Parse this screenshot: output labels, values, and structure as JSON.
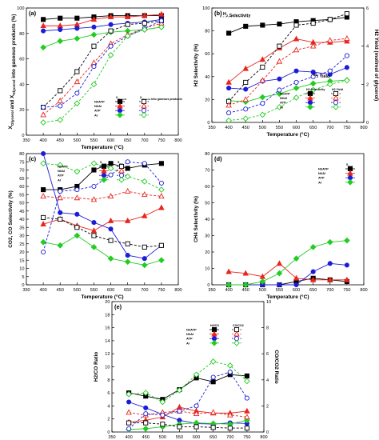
{
  "chart_data": [
    {
      "type": "line",
      "panel_label": "(a)",
      "xlabel": "Temperature (°C)",
      "ylabel": "X_Glycerol and X_Glycerol into gaseous products (%)",
      "xlim": [
        350,
        800
      ],
      "ylim": [
        0,
        100
      ],
      "x_ticks": [
        350,
        400,
        450,
        500,
        550,
        600,
        650,
        700,
        750,
        800
      ],
      "y_ticks": [
        0,
        20,
        40,
        60,
        80,
        100
      ],
      "x": [
        400,
        450,
        500,
        550,
        600,
        650,
        700,
        750
      ],
      "legend": {
        "rows": [
          "Ni/ATP",
          "Ni/Al",
          "ATP",
          "Al"
        ],
        "headers": [
          "X_Glycerol",
          "X_Glycerol into gaseous products"
        ]
      },
      "series": [
        {
          "name": "Ni/ATP",
          "kind": "X_Glycerol",
          "color": "#000000",
          "marker": "square",
          "filled": true,
          "dash": false,
          "values": [
            91,
            92,
            92,
            93,
            94,
            94,
            94,
            94
          ]
        },
        {
          "name": "Ni/Al",
          "kind": "X_Glycerol",
          "color": "#e8261c",
          "marker": "triangle",
          "filled": true,
          "dash": false,
          "values": [
            86,
            86,
            87,
            91,
            93,
            93,
            94,
            95
          ]
        },
        {
          "name": "ATP",
          "kind": "X_Glycerol",
          "color": "#1c1cd8",
          "marker": "circle",
          "filled": true,
          "dash": false,
          "values": [
            82,
            83,
            84,
            85,
            87,
            88,
            89,
            91
          ]
        },
        {
          "name": "Al",
          "kind": "X_Glycerol",
          "color": "#22cc22",
          "marker": "diamond",
          "filled": true,
          "dash": false,
          "values": [
            69,
            74,
            76,
            79,
            81,
            82,
            83,
            85
          ]
        },
        {
          "name": "Ni/ATP",
          "kind": "X_Glycerol into gaseous products",
          "color": "#000000",
          "marker": "square",
          "filled": false,
          "dash": true,
          "values": [
            22,
            35,
            50,
            70,
            82,
            87,
            88,
            90
          ]
        },
        {
          "name": "Ni/Al",
          "kind": "X_Glycerol into gaseous products",
          "color": "#e8261c",
          "marker": "triangle",
          "filled": false,
          "dash": true,
          "values": [
            16,
            27,
            42,
            57,
            72,
            79,
            84,
            88
          ]
        },
        {
          "name": "ATP",
          "kind": "X_Glycerol into gaseous products",
          "color": "#1c1cd8",
          "marker": "circle",
          "filled": false,
          "dash": true,
          "values": [
            22,
            23,
            33,
            54,
            70,
            78,
            84,
            90
          ]
        },
        {
          "name": "Al",
          "kind": "X_Glycerol into gaseous products",
          "color": "#22cc22",
          "marker": "diamond",
          "filled": false,
          "dash": true,
          "values": [
            10,
            12,
            25,
            40,
            63,
            78,
            83,
            85
          ]
        }
      ]
    },
    {
      "type": "line",
      "panel_label": "(b)",
      "xlabel": "Temperature (°C)",
      "ylabel": "H2 Selectivity (%)",
      "y2label": "H2 Yield (mol/mol of glycerol)",
      "xlim": [
        350,
        800
      ],
      "ylim": [
        0,
        100
      ],
      "y2lim": [
        0,
        6
      ],
      "x_ticks": [
        350,
        400,
        450,
        500,
        550,
        600,
        650,
        700,
        750,
        800
      ],
      "y_ticks": [
        0,
        20,
        40,
        60,
        80,
        100
      ],
      "y2_ticks": [
        0,
        2,
        4,
        6
      ],
      "annotations": [
        "H2 Selectivity",
        "H2 Yield"
      ],
      "x": [
        400,
        450,
        500,
        550,
        600,
        650,
        700,
        750
      ],
      "legend": {
        "rows": [
          "Ni/ATP",
          "Ni/Al",
          "ATP",
          "Al"
        ],
        "headers": [
          "H2 Selectivity",
          "H2 Yield"
        ]
      },
      "series": [
        {
          "name": "Ni/ATP",
          "kind": "H2 Selectivity",
          "color": "#000000",
          "marker": "square",
          "filled": true,
          "dash": false,
          "values": [
            78,
            84,
            85,
            86,
            88,
            89,
            90,
            92
          ]
        },
        {
          "name": "Ni/Al",
          "kind": "H2 Selectivity",
          "color": "#e8261c",
          "marker": "triangle",
          "filled": true,
          "dash": false,
          "values": [
            35,
            47,
            55,
            65,
            73,
            70,
            70,
            71
          ]
        },
        {
          "name": "ATP",
          "kind": "H2 Selectivity",
          "color": "#1c1cd8",
          "marker": "circle",
          "filled": true,
          "dash": false,
          "values": [
            30,
            29,
            36,
            38,
            45,
            44,
            42,
            48
          ]
        },
        {
          "name": "Al",
          "kind": "H2 Selectivity",
          "color": "#22cc22",
          "marker": "diamond",
          "filled": true,
          "dash": false,
          "values": [
            19,
            18,
            22,
            25,
            30,
            34,
            36,
            37
          ]
        },
        {
          "name": "Ni/ATP",
          "kind": "H2 Yield",
          "color": "#000000",
          "marker": "square",
          "filled": false,
          "dash": true,
          "axis": "right",
          "values": [
            1.1,
            2.1,
            2.9,
            4.0,
            5.1,
            5.2,
            5.4,
            5.7
          ]
        },
        {
          "name": "Ni/Al",
          "kind": "H2 Yield",
          "color": "#e8261c",
          "marker": "triangle",
          "filled": false,
          "dash": true,
          "axis": "right",
          "values": [
            0.9,
            1.2,
            2.2,
            3.2,
            3.8,
            4.0,
            4.3,
            4.4
          ]
        },
        {
          "name": "ATP",
          "kind": "H2 Yield",
          "color": "#1c1cd8",
          "marker": "circle",
          "filled": false,
          "dash": true,
          "axis": "right",
          "values": [
            0.5,
            0.7,
            1.0,
            1.7,
            2.1,
            2.4,
            2.7,
            3.5
          ]
        },
        {
          "name": "Al",
          "kind": "H2 Yield",
          "color": "#22cc22",
          "marker": "diamond",
          "filled": false,
          "dash": true,
          "axis": "right",
          "values": [
            0.1,
            0.2,
            0.4,
            0.8,
            1.3,
            1.7,
            2.0,
            2.2
          ]
        }
      ]
    },
    {
      "type": "line",
      "panel_label": "(c)",
      "xlabel": "Temperature (°C)",
      "ylabel": "CO2, CO Selectivity (%)",
      "xlim": [
        350,
        800
      ],
      "ylim": [
        0,
        80
      ],
      "x_ticks": [
        350,
        400,
        450,
        500,
        550,
        600,
        650,
        700,
        750,
        800
      ],
      "y_ticks": [
        0,
        5,
        10,
        15,
        20,
        25,
        30,
        35,
        40,
        45,
        50,
        55,
        60,
        65,
        70,
        75,
        80
      ],
      "x": [
        400,
        450,
        500,
        550,
        600,
        650,
        700,
        750
      ],
      "legend": {
        "rows": [
          "Ni/ATP",
          "Ni/Al",
          "ATP",
          "Al"
        ],
        "headers": [
          "S_CO2",
          "S_CO"
        ]
      },
      "series": [
        {
          "name": "Ni/ATP",
          "kind": "S_CO2",
          "color": "#000000",
          "marker": "square",
          "filled": true,
          "dash": false,
          "values": [
            58,
            58,
            60,
            70,
            74,
            71,
            73,
            74
          ]
        },
        {
          "name": "Ni/Al",
          "kind": "S_CO2",
          "color": "#e8261c",
          "marker": "triangle",
          "filled": true,
          "dash": false,
          "values": [
            37,
            40,
            36,
            33,
            39,
            39,
            42,
            47
          ]
        },
        {
          "name": "ATP",
          "kind": "S_CO2",
          "color": "#1c1cd8",
          "marker": "circle",
          "filled": true,
          "dash": false,
          "values": [
            80,
            44,
            43,
            38,
            34,
            18,
            16,
            24
          ]
        },
        {
          "name": "Al",
          "kind": "S_CO2",
          "color": "#22cc22",
          "marker": "diamond",
          "filled": true,
          "dash": false,
          "values": [
            26,
            24,
            30,
            23,
            16,
            14,
            12,
            15
          ]
        },
        {
          "name": "Ni/ATP",
          "kind": "S_CO",
          "color": "#000000",
          "marker": "square",
          "filled": false,
          "dash": true,
          "values": [
            41,
            40,
            35,
            30,
            27,
            25,
            23,
            24
          ]
        },
        {
          "name": "Ni/Al",
          "kind": "S_CO",
          "color": "#e8261c",
          "marker": "triangle",
          "filled": false,
          "dash": true,
          "values": [
            54,
            53,
            53,
            52,
            54,
            57,
            55,
            54
          ]
        },
        {
          "name": "ATP",
          "kind": "S_CO",
          "color": "#1c1cd8",
          "marker": "circle",
          "filled": false,
          "dash": true,
          "values": [
            20,
            57,
            58,
            60,
            67,
            75,
            74,
            62
          ]
        },
        {
          "name": "Al",
          "kind": "S_CO",
          "color": "#22cc22",
          "marker": "diamond",
          "filled": false,
          "dash": true,
          "values": [
            74,
            73,
            69,
            74,
            71,
            66,
            63,
            58
          ]
        }
      ]
    },
    {
      "type": "line",
      "panel_label": "(d)",
      "xlabel": "Temperature (°C)",
      "ylabel": "CH4 Selectivity (%)",
      "xlim": [
        350,
        800
      ],
      "ylim": [
        0,
        80
      ],
      "x_ticks": [
        350,
        400,
        450,
        500,
        550,
        600,
        650,
        700,
        750,
        800
      ],
      "y_ticks": [
        0,
        10,
        20,
        30,
        40,
        50,
        60,
        70,
        80
      ],
      "x": [
        400,
        450,
        500,
        550,
        600,
        650,
        700,
        750
      ],
      "legend": {
        "rows": [
          "Ni/ATP",
          "Ni/Al",
          "ATP",
          "Al"
        ],
        "headers": [
          "S_CH4"
        ]
      },
      "series": [
        {
          "name": "Ni/ATP",
          "kind": "S_CH4",
          "color": "#000000",
          "marker": "square",
          "filled": true,
          "dash": false,
          "values": [
            0,
            0,
            0,
            0,
            2,
            4,
            3,
            2
          ]
        },
        {
          "name": "Ni/Al",
          "kind": "S_CH4",
          "color": "#e8261c",
          "marker": "triangle",
          "filled": true,
          "dash": false,
          "values": [
            8,
            7,
            5,
            13,
            4,
            3,
            3,
            3
          ]
        },
        {
          "name": "ATP",
          "kind": "S_CH4",
          "color": "#1c1cd8",
          "marker": "circle",
          "filled": true,
          "dash": false,
          "values": [
            0,
            0,
            0,
            0,
            0,
            8,
            13,
            12
          ]
        },
        {
          "name": "Al",
          "kind": "S_CH4",
          "color": "#22cc22",
          "marker": "diamond",
          "filled": true,
          "dash": false,
          "values": [
            0,
            0,
            2,
            7,
            16,
            23,
            26,
            27
          ]
        }
      ]
    },
    {
      "type": "line",
      "panel_label": "(e)",
      "xlabel": "Temperature (°C)",
      "ylabel": "H2/CO Ratio",
      "y2label": "CO/CO2 Ratio",
      "xlim": [
        350,
        800
      ],
      "ylim": [
        0,
        20
      ],
      "y2lim": [
        0,
        10
      ],
      "x_ticks": [
        350,
        400,
        450,
        500,
        550,
        600,
        650,
        700,
        750,
        800
      ],
      "y_ticks": [
        0,
        2,
        4,
        6,
        8,
        10,
        12,
        14,
        16,
        18,
        20
      ],
      "y2_ticks": [
        0,
        2,
        4,
        6,
        8,
        10
      ],
      "x": [
        400,
        450,
        500,
        550,
        600,
        650,
        700,
        750
      ],
      "legend": {
        "rows": [
          "Ni/ATP",
          "Ni/Al",
          "ATP",
          "Al"
        ],
        "headers": [
          "H2/CO",
          "CO/CO2"
        ]
      },
      "series": [
        {
          "name": "Ni/ATP",
          "kind": "H2/CO",
          "color": "#000000",
          "marker": "square",
          "filled": true,
          "dash": false,
          "values": [
            6.0,
            5.5,
            5.0,
            6.5,
            8.3,
            7.7,
            8.8,
            8.6
          ]
        },
        {
          "name": "Ni/Al",
          "kind": "H2/CO",
          "color": "#e8261c",
          "marker": "triangle",
          "filled": true,
          "dash": false,
          "values": [
            1.5,
            1.8,
            2.3,
            3.8,
            3.2,
            2.9,
            2.9,
            3.2
          ]
        },
        {
          "name": "ATP",
          "kind": "H2/CO",
          "color": "#1c1cd8",
          "marker": "circle",
          "filled": true,
          "dash": false,
          "values": [
            4.6,
            3.7,
            2.7,
            1.8,
            1.3,
            1.2,
            1.4,
            1.3
          ]
        },
        {
          "name": "Al",
          "kind": "H2/CO",
          "color": "#22cc22",
          "marker": "diamond",
          "filled": true,
          "dash": false,
          "values": [
            0.4,
            0.5,
            0.8,
            1.2,
            1.4,
            1.3,
            1.2,
            1.8
          ]
        },
        {
          "name": "Ni/ATP",
          "kind": "CO/CO2",
          "color": "#000000",
          "marker": "square",
          "filled": false,
          "dash": true,
          "axis": "right",
          "values": [
            0.7,
            0.7,
            0.6,
            0.4,
            0.4,
            0.35,
            0.3,
            0.3
          ]
        },
        {
          "name": "Ni/Al",
          "kind": "CO/CO2",
          "color": "#e8261c",
          "marker": "triangle",
          "filled": false,
          "dash": true,
          "axis": "right",
          "values": [
            1.5,
            1.3,
            1.5,
            1.6,
            1.4,
            1.5,
            1.3,
            1.15
          ]
        },
        {
          "name": "ATP",
          "kind": "CO/CO2",
          "color": "#1c1cd8",
          "marker": "circle",
          "filled": false,
          "dash": true,
          "axis": "right",
          "values": [
            0.25,
            1.4,
            1.3,
            1.6,
            2.0,
            4.2,
            4.6,
            2.6
          ]
        },
        {
          "name": "Al",
          "kind": "CO/CO2",
          "color": "#22cc22",
          "marker": "diamond",
          "filled": false,
          "dash": true,
          "axis": "right",
          "values": [
            2.9,
            3.0,
            2.3,
            3.2,
            4.4,
            5.4,
            5.1,
            3.9
          ]
        }
      ]
    }
  ]
}
